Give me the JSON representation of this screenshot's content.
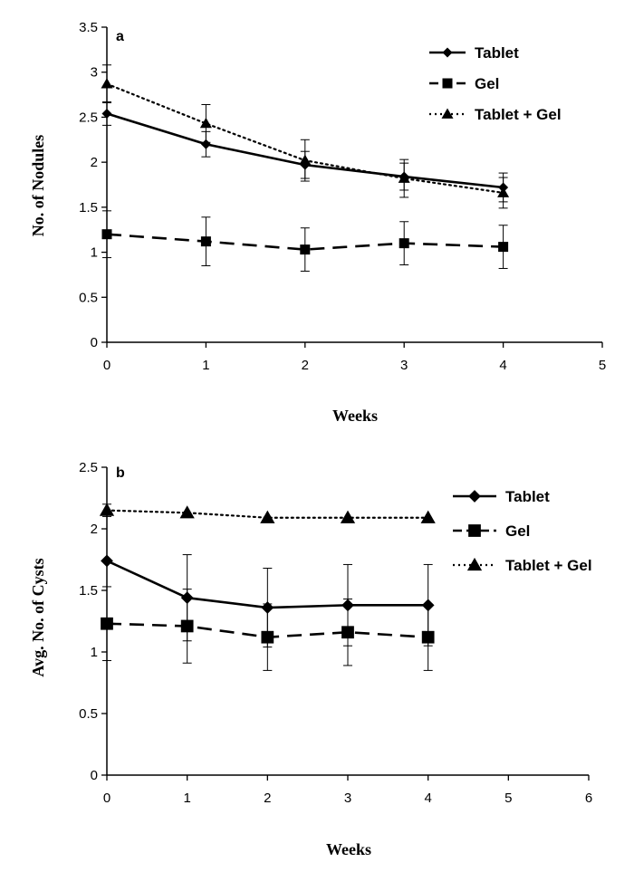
{
  "chart_data": [
    {
      "type": "line",
      "panel_label": "a",
      "xlabel": "Weeks",
      "ylabel": "No.  of Nodules",
      "xlim": [
        0,
        5
      ],
      "ylim": [
        0,
        3.5
      ],
      "x_ticks": [
        "0",
        "1",
        "2",
        "3",
        "4",
        "5"
      ],
      "y_ticks": [
        "0",
        "0.5",
        "1",
        "1.5",
        "2",
        "2.5",
        "3",
        "3.5"
      ],
      "legend_position": "top-right",
      "grid": false,
      "x": [
        0,
        1,
        2,
        3,
        4
      ],
      "series": [
        {
          "name": "Tablet",
          "marker": "diamond",
          "line": "solid",
          "values": [
            2.54,
            2.2,
            1.97,
            1.84,
            1.72
          ],
          "errors": [
            0.13,
            0.14,
            0.15,
            0.15,
            0.16
          ]
        },
        {
          "name": "Gel",
          "marker": "square",
          "line": "dashed",
          "values": [
            1.2,
            1.12,
            1.03,
            1.1,
            1.06
          ],
          "errors": [
            0.26,
            0.27,
            0.24,
            0.24,
            0.24
          ]
        },
        {
          "name": "Tablet + Gel",
          "marker": "triangle",
          "line": "dotted",
          "values": [
            2.87,
            2.43,
            2.02,
            1.82,
            1.66
          ],
          "errors": [
            0.21,
            0.21,
            0.23,
            0.21,
            0.17
          ]
        }
      ]
    },
    {
      "type": "line",
      "panel_label": "b",
      "xlabel": "Weeks",
      "ylabel": "Avg. No. of Cysts",
      "xlim": [
        0,
        6
      ],
      "ylim": [
        0,
        2.5
      ],
      "x_ticks": [
        "0",
        "1",
        "2",
        "3",
        "4",
        "5",
        "6"
      ],
      "y_ticks": [
        "0",
        "0.5",
        "1",
        "1.5",
        "2",
        "2.5"
      ],
      "legend_position": "top-right",
      "grid": false,
      "x": [
        0,
        1,
        2,
        3,
        4
      ],
      "series": [
        {
          "name": "Tablet",
          "marker": "diamond",
          "line": "solid",
          "values": [
            1.74,
            1.44,
            1.36,
            1.38,
            1.38
          ],
          "errors": [
            0.0,
            0.35,
            0.32,
            0.33,
            0.33
          ]
        },
        {
          "name": "Gel",
          "marker": "square",
          "line": "dashed",
          "values": [
            1.23,
            1.21,
            1.12,
            1.16,
            1.12
          ],
          "errors": [
            0.3,
            0.3,
            0.27,
            0.27,
            0.27
          ]
        },
        {
          "name": "Tablet + Gel",
          "marker": "triangle",
          "line": "dotted",
          "values": [
            2.15,
            2.13,
            2.09,
            2.09,
            2.09
          ],
          "errors": [
            0.05,
            0.0,
            0.0,
            0.0,
            0.0
          ]
        }
      ]
    }
  ]
}
